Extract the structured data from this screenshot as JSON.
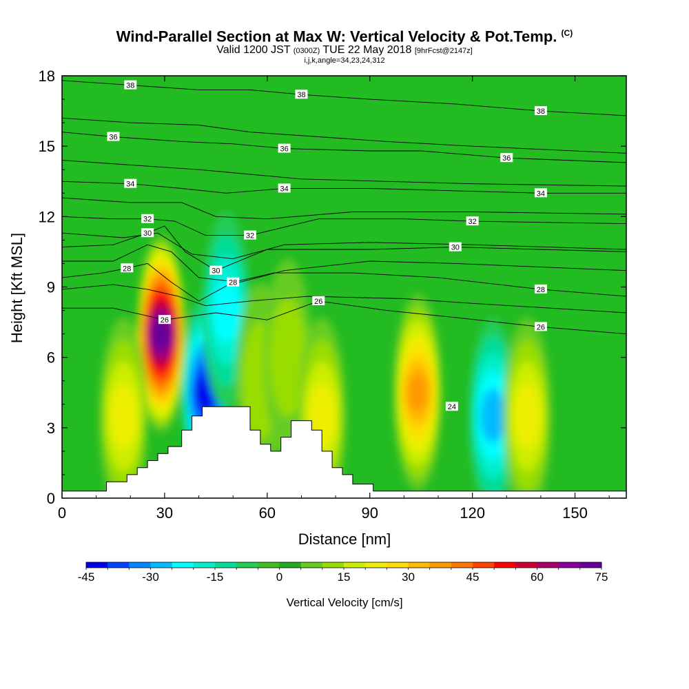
{
  "title": {
    "main": "Wind-Parallel Section at Max W: Vertical Velocity & Pot.Temp.",
    "copyright": "(C)",
    "valid_prefix": "Valid 1200 JST",
    "valid_utc": "(0300Z)",
    "valid_date": "TUE 22 May 2018",
    "forecast": "[9hrFcst@2147z]",
    "index_line": "i,j,k,angle=34,23,24,312"
  },
  "chart_data": {
    "type": "heatmap",
    "xlabel": "Distance [nm]",
    "ylabel": "Height [Kft MSL]",
    "xlim": [
      0,
      165
    ],
    "ylim": [
      0,
      18
    ],
    "x_ticks": [
      0,
      30,
      60,
      90,
      120,
      150
    ],
    "y_ticks": [
      0,
      3,
      6,
      9,
      12,
      15,
      18
    ],
    "colorbar": {
      "label": "Vertical Velocity [cm/s]",
      "min": -45,
      "max": 80,
      "step": 5,
      "tick_values": [
        -45,
        -30,
        -15,
        0,
        15,
        30,
        45,
        60,
        75
      ],
      "colors": [
        "#0000ee",
        "#0044ff",
        "#0088ff",
        "#00bbff",
        "#00ffff",
        "#00eecc",
        "#00dd99",
        "#22cc55",
        "#44bb22",
        "#22aa22",
        "#66cc22",
        "#99dd00",
        "#ccee00",
        "#eeee00",
        "#ffdd00",
        "#ffbb00",
        "#ff9900",
        "#ff7700",
        "#ff4400",
        "#ff0000",
        "#cc0033",
        "#aa0066",
        "#880099",
        "#660099"
      ]
    },
    "terrain_profile_kft": [
      [
        0,
        0.3
      ],
      [
        13,
        0.3
      ],
      [
        13,
        0.7
      ],
      [
        19,
        0.7
      ],
      [
        19,
        1.0
      ],
      [
        22,
        1.0
      ],
      [
        22,
        1.3
      ],
      [
        25,
        1.3
      ],
      [
        25,
        1.6
      ],
      [
        28,
        1.6
      ],
      [
        28,
        1.9
      ],
      [
        31,
        1.9
      ],
      [
        31,
        2.2
      ],
      [
        35,
        2.2
      ],
      [
        35,
        2.9
      ],
      [
        38,
        2.9
      ],
      [
        38,
        3.5
      ],
      [
        41,
        3.5
      ],
      [
        41,
        3.9
      ],
      [
        55,
        3.9
      ],
      [
        55,
        2.9
      ],
      [
        58,
        2.9
      ],
      [
        58,
        2.3
      ],
      [
        61,
        2.3
      ],
      [
        61,
        2.0
      ],
      [
        64,
        2.0
      ],
      [
        64,
        2.6
      ],
      [
        67,
        2.6
      ],
      [
        67,
        3.3
      ],
      [
        73,
        3.3
      ],
      [
        73,
        2.9
      ],
      [
        76,
        2.9
      ],
      [
        76,
        2.0
      ],
      [
        79,
        2.0
      ],
      [
        79,
        1.3
      ],
      [
        82,
        1.3
      ],
      [
        82,
        1.0
      ],
      [
        85,
        1.0
      ],
      [
        85,
        0.6
      ],
      [
        91,
        0.6
      ],
      [
        91,
        0.3
      ],
      [
        165,
        0.3
      ]
    ],
    "velocity_features": [
      {
        "x": 29,
        "y": 7.0,
        "peak_cm_s": 78,
        "kind": "updraft"
      },
      {
        "x": 18,
        "y": 3.5,
        "peak_cm_s": 22,
        "kind": "updraft"
      },
      {
        "x": 42,
        "y": 4.5,
        "peak_cm_s": -42,
        "kind": "downdraft"
      },
      {
        "x": 48,
        "y": 8.0,
        "peak_cm_s": -20,
        "kind": "downdraft"
      },
      {
        "x": 104,
        "y": 4.5,
        "peak_cm_s": 35,
        "kind": "updraft"
      },
      {
        "x": 126,
        "y": 3.5,
        "peak_cm_s": -27,
        "kind": "downdraft"
      },
      {
        "x": 136,
        "y": 3.5,
        "peak_cm_s": 22,
        "kind": "updraft"
      },
      {
        "x": 58,
        "y": 5.0,
        "peak_cm_s": 10,
        "kind": "updraft"
      },
      {
        "x": 66,
        "y": 6.0,
        "peak_cm_s": 12,
        "kind": "updraft"
      },
      {
        "x": 76,
        "y": 3.5,
        "peak_cm_s": 20,
        "kind": "updraft"
      }
    ],
    "theta_contours": [
      {
        "label": "38",
        "points": [
          [
            0,
            17.8
          ],
          [
            20,
            17.6
          ],
          [
            40,
            17.4
          ],
          [
            55,
            17.4
          ],
          [
            70,
            17.2
          ],
          [
            90,
            17.0
          ],
          [
            115,
            16.8
          ],
          [
            140,
            16.5
          ],
          [
            165,
            16.3
          ]
        ]
      },
      {
        "label": "",
        "points": [
          [
            0,
            16.2
          ],
          [
            20,
            16.0
          ],
          [
            40,
            15.9
          ],
          [
            55,
            15.6
          ],
          [
            75,
            15.4
          ],
          [
            95,
            15.2
          ],
          [
            120,
            15.0
          ],
          [
            165,
            14.7
          ]
        ]
      },
      {
        "label": "36",
        "points": [
          [
            0,
            15.6
          ],
          [
            15,
            15.4
          ],
          [
            35,
            15.2
          ],
          [
            50,
            15.1
          ],
          [
            65,
            14.9
          ],
          [
            90,
            14.8
          ],
          [
            105,
            14.8
          ],
          [
            130,
            14.5
          ],
          [
            165,
            14.3
          ]
        ]
      },
      {
        "label": "",
        "points": [
          [
            0,
            14.4
          ],
          [
            20,
            14.2
          ],
          [
            40,
            14.0
          ],
          [
            55,
            13.8
          ],
          [
            70,
            13.6
          ],
          [
            95,
            13.5
          ],
          [
            120,
            13.4
          ],
          [
            165,
            13.3
          ]
        ]
      },
      {
        "label": "34",
        "points": [
          [
            0,
            13.5
          ],
          [
            20,
            13.4
          ],
          [
            35,
            13.2
          ],
          [
            48,
            13.0
          ],
          [
            65,
            13.2
          ],
          [
            90,
            13.2
          ],
          [
            115,
            13.1
          ],
          [
            140,
            13.0
          ],
          [
            165,
            13.0
          ]
        ]
      },
      {
        "label": "",
        "points": [
          [
            0,
            12.8
          ],
          [
            20,
            12.6
          ],
          [
            35,
            12.6
          ],
          [
            45,
            12.0
          ],
          [
            60,
            11.9
          ],
          [
            85,
            12.2
          ],
          [
            120,
            12.2
          ],
          [
            165,
            12.1
          ]
        ]
      },
      {
        "label": "32",
        "points": [
          [
            0,
            12.0
          ],
          [
            15,
            11.9
          ],
          [
            25,
            11.9
          ],
          [
            33,
            11.8
          ],
          [
            42,
            11.2
          ],
          [
            55,
            11.2
          ],
          [
            75,
            11.9
          ],
          [
            100,
            11.9
          ],
          [
            120,
            11.8
          ],
          [
            165,
            11.7
          ]
        ]
      },
      {
        "label": "",
        "points": [
          [
            0,
            11.3
          ],
          [
            18,
            11.1
          ],
          [
            28,
            11.3
          ],
          [
            38,
            10.4
          ],
          [
            50,
            10.2
          ],
          [
            65,
            10.8
          ],
          [
            90,
            10.9
          ],
          [
            120,
            10.8
          ],
          [
            165,
            10.6
          ]
        ]
      },
      {
        "label": "30",
        "points": [
          [
            0,
            10.7
          ],
          [
            15,
            10.8
          ],
          [
            25,
            11.3
          ],
          [
            30,
            11.6
          ],
          [
            36,
            10.5
          ],
          [
            45,
            9.7
          ],
          [
            60,
            10.6
          ],
          [
            90,
            10.6
          ],
          [
            115,
            10.7
          ],
          [
            165,
            10.5
          ]
        ]
      },
      {
        "label": "",
        "points": [
          [
            0,
            10.1
          ],
          [
            15,
            10.1
          ],
          [
            25,
            10.8
          ],
          [
            32,
            10.5
          ],
          [
            40,
            9.4
          ],
          [
            52,
            9.2
          ],
          [
            65,
            9.7
          ],
          [
            90,
            10.1
          ],
          [
            115,
            10.0
          ],
          [
            165,
            9.7
          ]
        ]
      },
      {
        "label": "28",
        "points": [
          [
            0,
            9.4
          ],
          [
            12,
            9.6
          ],
          [
            19,
            9.8
          ],
          [
            25,
            10.0
          ],
          [
            32,
            9.2
          ],
          [
            40,
            8.4
          ],
          [
            50,
            9.2
          ],
          [
            62,
            9.6
          ],
          [
            85,
            9.6
          ],
          [
            110,
            9.4
          ],
          [
            140,
            8.9
          ],
          [
            165,
            8.6
          ]
        ]
      },
      {
        "label": "",
        "points": [
          [
            0,
            8.9
          ],
          [
            15,
            9.1
          ],
          [
            25,
            8.9
          ],
          [
            34,
            8.6
          ],
          [
            42,
            8.2
          ],
          [
            55,
            8.4
          ],
          [
            72,
            8.6
          ],
          [
            100,
            8.5
          ],
          [
            120,
            8.3
          ],
          [
            165,
            7.9
          ]
        ]
      },
      {
        "label": "26",
        "points": [
          [
            0,
            8.1
          ],
          [
            15,
            8.1
          ],
          [
            30,
            7.6
          ],
          [
            45,
            7.9
          ],
          [
            60,
            7.6
          ],
          [
            75,
            8.4
          ],
          [
            95,
            8.0
          ],
          [
            115,
            7.7
          ],
          [
            140,
            7.3
          ],
          [
            165,
            7.0
          ]
        ]
      }
    ],
    "contour_labels_extra": [
      "24"
    ]
  }
}
